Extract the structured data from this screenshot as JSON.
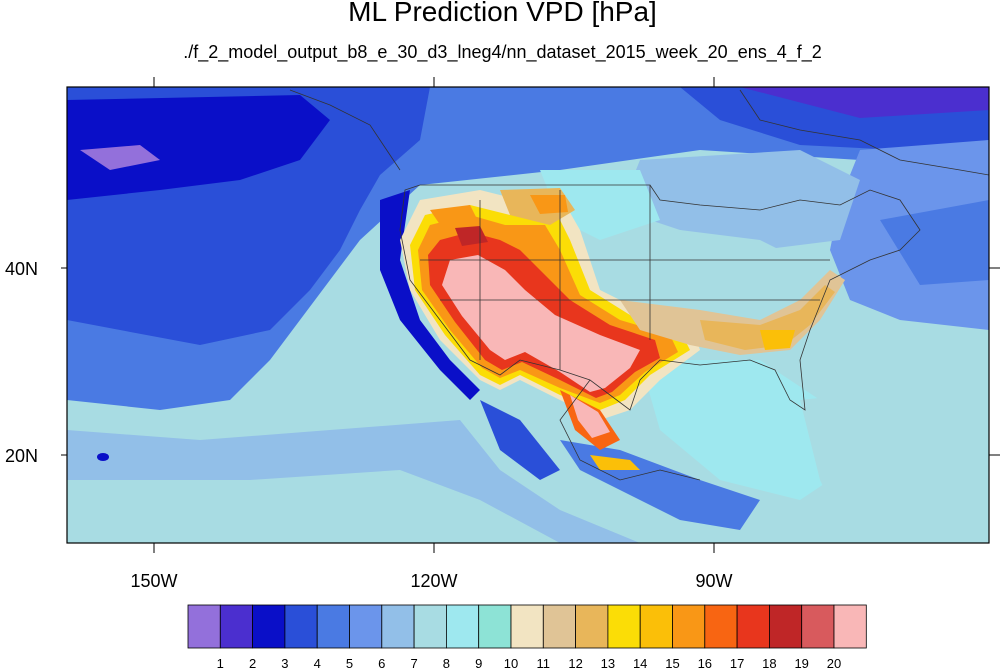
{
  "title": "ML Prediction VPD [hPa]",
  "subtitle": "./f_2_model_output_b8_e_30_d3_lneg4/nn_dataset_2015_week_20_ens_4_f_2",
  "map": {
    "lon_labels": [
      "150W",
      "120W",
      "90W"
    ],
    "lat_labels": [
      "40N",
      "20N"
    ]
  },
  "colorbar": {
    "colors": [
      "#9370db",
      "#4b2fcf",
      "#0a0fc8",
      "#2a4fd8",
      "#4a7ae3",
      "#6b95eb",
      "#92bfe8",
      "#a8dce3",
      "#9ee8ef",
      "#8de3d6",
      "#f2e4c2",
      "#e0c496",
      "#e8b65a",
      "#fbdd06",
      "#fbbf08",
      "#f99716",
      "#f86512",
      "#e8361d",
      "#bf2627",
      "#d85a5d",
      "#f9b7b7"
    ],
    "labels": [
      "1",
      "2",
      "3",
      "4",
      "5",
      "6",
      "7",
      "8",
      "9",
      "10",
      "11",
      "12",
      "13",
      "14",
      "15",
      "16",
      "17",
      "18",
      "19",
      "20"
    ]
  },
  "colors": {
    "ocean_deep": "#0a0fc8",
    "ocean_mid": "#2a4fd8",
    "ocean_light": "#4a7ae3",
    "ocean_pale": "#92bfe8",
    "land_cool": "#6b95eb",
    "dry": "#f86512",
    "very_dry": "#f9b7b7"
  }
}
